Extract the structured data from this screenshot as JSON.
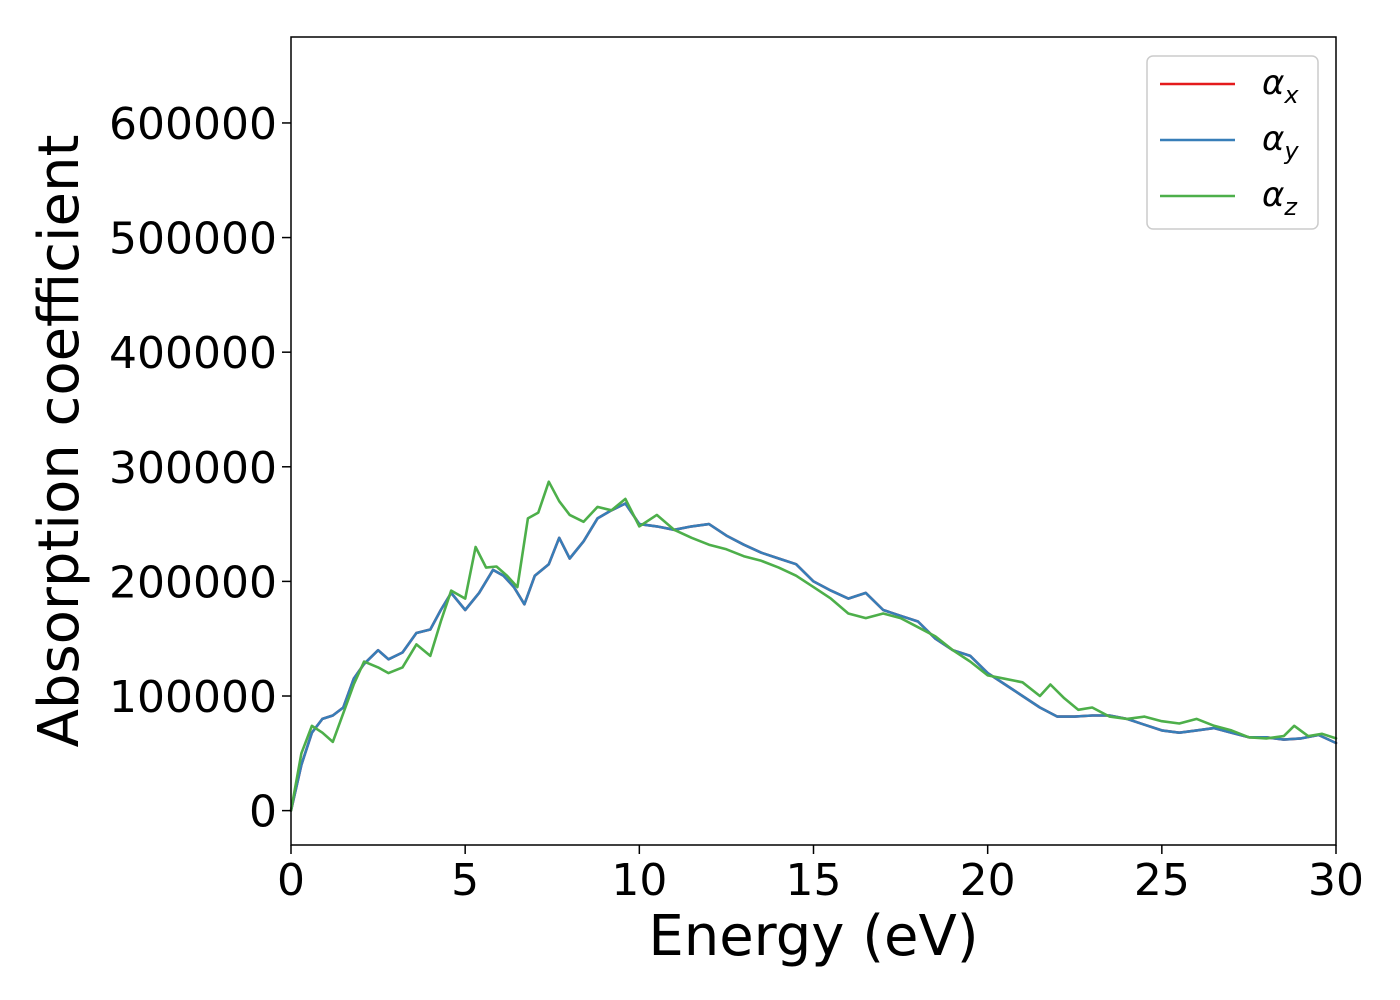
{
  "chart_data": {
    "type": "line",
    "xlabel": "Energy (eV)",
    "ylabel": "Absorption coefficient",
    "xlim": [
      0,
      30
    ],
    "ylim": [
      -30000,
      675000
    ],
    "x_ticks": [
      "0",
      "5",
      "10",
      "15",
      "20",
      "25",
      "30"
    ],
    "y_ticks": [
      "0",
      "100000",
      "200000",
      "300000",
      "400000",
      "500000",
      "600000"
    ],
    "grid": false,
    "legend_position": "top-right",
    "series": [
      {
        "name": "α_x",
        "legend_base": "α",
        "legend_sub": "x",
        "color": "#e41a1c",
        "x": [
          0,
          0.3,
          0.6,
          0.9,
          1.2,
          1.5,
          1.8,
          2.1,
          2.5,
          2.8,
          3.2,
          3.6,
          4.0,
          4.3,
          4.6,
          5.0,
          5.4,
          5.8,
          6.1,
          6.4,
          6.7,
          7.0,
          7.4,
          7.7,
          8.0,
          8.4,
          8.8,
          9.2,
          9.6,
          10.0,
          10.5,
          11.0,
          11.5,
          12.0,
          12.5,
          13.0,
          13.5,
          14.0,
          14.5,
          15.0,
          15.5,
          16.0,
          16.5,
          17.0,
          17.5,
          18.0,
          18.5,
          19.0,
          19.5,
          20.0,
          20.5,
          21.0,
          21.5,
          22.0,
          22.5,
          23.0,
          23.5,
          24.0,
          24.5,
          25.0,
          25.5,
          26.0,
          26.5,
          27.0,
          27.5,
          28.0,
          28.5,
          29.0,
          29.5,
          30.0
        ],
        "y": [
          0,
          40000,
          68000,
          80000,
          83000,
          90000,
          115000,
          128000,
          140000,
          132000,
          138000,
          155000,
          158000,
          175000,
          190000,
          175000,
          190000,
          210000,
          205000,
          195000,
          180000,
          205000,
          215000,
          238000,
          220000,
          235000,
          255000,
          262000,
          268000,
          250000,
          248000,
          245000,
          248000,
          250000,
          240000,
          232000,
          225000,
          220000,
          215000,
          200000,
          192000,
          185000,
          190000,
          175000,
          170000,
          165000,
          150000,
          140000,
          135000,
          120000,
          110000,
          100000,
          90000,
          82000,
          82000,
          83000,
          83000,
          80000,
          75000,
          70000,
          68000,
          70000,
          72000,
          68000,
          64000,
          64000,
          62000,
          63000,
          66000,
          59000
        ]
      },
      {
        "name": "α_y",
        "legend_base": "α",
        "legend_sub": "y",
        "color": "#377eb8",
        "x": [
          0,
          0.3,
          0.6,
          0.9,
          1.2,
          1.5,
          1.8,
          2.1,
          2.5,
          2.8,
          3.2,
          3.6,
          4.0,
          4.3,
          4.6,
          5.0,
          5.4,
          5.8,
          6.1,
          6.4,
          6.7,
          7.0,
          7.4,
          7.7,
          8.0,
          8.4,
          8.8,
          9.2,
          9.6,
          10.0,
          10.5,
          11.0,
          11.5,
          12.0,
          12.5,
          13.0,
          13.5,
          14.0,
          14.5,
          15.0,
          15.5,
          16.0,
          16.5,
          17.0,
          17.5,
          18.0,
          18.5,
          19.0,
          19.5,
          20.0,
          20.5,
          21.0,
          21.5,
          22.0,
          22.5,
          23.0,
          23.5,
          24.0,
          24.5,
          25.0,
          25.5,
          26.0,
          26.5,
          27.0,
          27.5,
          28.0,
          28.5,
          29.0,
          29.5,
          30.0
        ],
        "y": [
          0,
          40000,
          68000,
          80000,
          83000,
          90000,
          115000,
          128000,
          140000,
          132000,
          138000,
          155000,
          158000,
          175000,
          190000,
          175000,
          190000,
          210000,
          205000,
          195000,
          180000,
          205000,
          215000,
          238000,
          220000,
          235000,
          255000,
          262000,
          268000,
          250000,
          248000,
          245000,
          248000,
          250000,
          240000,
          232000,
          225000,
          220000,
          215000,
          200000,
          192000,
          185000,
          190000,
          175000,
          170000,
          165000,
          150000,
          140000,
          135000,
          120000,
          110000,
          100000,
          90000,
          82000,
          82000,
          83000,
          83000,
          80000,
          75000,
          70000,
          68000,
          70000,
          72000,
          68000,
          64000,
          64000,
          62000,
          63000,
          66000,
          59000
        ]
      },
      {
        "name": "α_z",
        "legend_base": "α",
        "legend_sub": "z",
        "color": "#4daf4a",
        "x": [
          0,
          0.3,
          0.6,
          0.9,
          1.2,
          1.5,
          1.8,
          2.1,
          2.5,
          2.8,
          3.2,
          3.6,
          4.0,
          4.3,
          4.6,
          5.0,
          5.3,
          5.6,
          5.9,
          6.2,
          6.5,
          6.8,
          7.1,
          7.4,
          7.7,
          8.0,
          8.4,
          8.8,
          9.2,
          9.6,
          10.0,
          10.5,
          11.0,
          11.5,
          12.0,
          12.5,
          13.0,
          13.5,
          14.0,
          14.5,
          15.0,
          15.5,
          16.0,
          16.5,
          17.0,
          17.5,
          18.0,
          18.5,
          19.0,
          19.5,
          20.0,
          20.5,
          21.0,
          21.5,
          21.8,
          22.2,
          22.6,
          23.0,
          23.5,
          24.0,
          24.5,
          25.0,
          25.5,
          26.0,
          26.5,
          27.0,
          27.5,
          28.0,
          28.5,
          28.8,
          29.2,
          29.6,
          30.0
        ],
        "y": [
          0,
          50000,
          74000,
          68000,
          60000,
          85000,
          110000,
          130000,
          125000,
          120000,
          125000,
          145000,
          135000,
          165000,
          192000,
          185000,
          230000,
          212000,
          213000,
          205000,
          195000,
          255000,
          260000,
          287000,
          270000,
          258000,
          252000,
          265000,
          262000,
          272000,
          248000,
          258000,
          245000,
          238000,
          232000,
          228000,
          222000,
          218000,
          212000,
          205000,
          195000,
          185000,
          172000,
          168000,
          172000,
          168000,
          160000,
          152000,
          140000,
          130000,
          118000,
          115000,
          112000,
          100000,
          110000,
          98000,
          88000,
          90000,
          82000,
          80000,
          82000,
          78000,
          76000,
          80000,
          74000,
          70000,
          64000,
          63000,
          65000,
          74000,
          65000,
          67000,
          63000
        ]
      }
    ]
  }
}
